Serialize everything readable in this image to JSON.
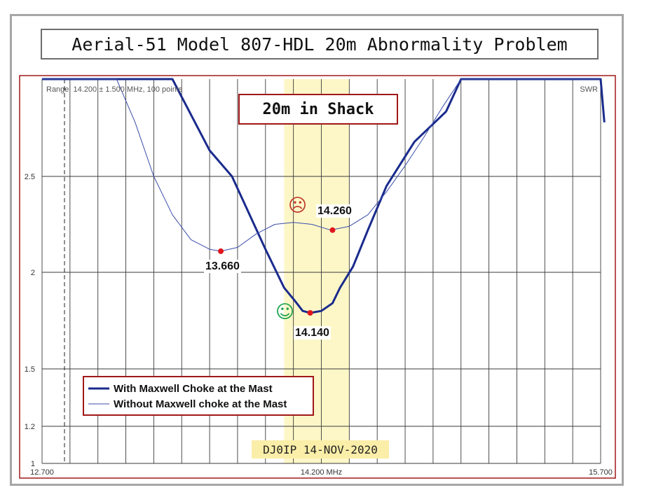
{
  "title": "Aerial-51 Model 807-HDL 20m Abnormality Problem",
  "annotation_box": "20m in Shack",
  "stamp": "DJ0IP 14-NOV-2020",
  "colors": {
    "with_choke": "#1a2b8c",
    "without_choke": "#3a4ca8",
    "marker": "#e0161c",
    "band_highlight": "#fdf7c8",
    "frame_border": "#a01818",
    "happy_face": "#1aa34a",
    "sad_face": "#c0392b"
  },
  "icons": {
    "happy": "☺",
    "sad": "☹"
  },
  "chart_data": {
    "type": "line",
    "range_label": "Range: 14.200 ± 1.500 MHz, 100 points",
    "swr_label": "SWR",
    "x_tick_labels": [
      "12.700",
      "14.200 MHz",
      "15.700"
    ],
    "y_tick_labels": [
      "2.5",
      "2",
      "1.5",
      "1.2",
      "1"
    ],
    "y_tick_values": [
      2.5,
      2.0,
      1.5,
      1.2,
      1.0
    ],
    "xlim": [
      12.7,
      15.7
    ],
    "ylim": [
      1.0,
      2.95
    ],
    "grid": true,
    "band_highlight_mhz": [
      14.0,
      14.35
    ],
    "legend": [
      {
        "label": "With Maxwell Choke at the Mast",
        "style": "thick"
      },
      {
        "label": "Without Maxwell choke at the Mast",
        "style": "thin"
      }
    ],
    "series": [
      {
        "name": "With Maxwell Choke at the Mast",
        "x": [
          12.7,
          13.2,
          13.4,
          13.6,
          13.72,
          13.9,
          14.0,
          14.06,
          14.1,
          14.14,
          14.2,
          14.26,
          14.3,
          14.37,
          14.45,
          14.55,
          14.7,
          14.87,
          14.95,
          15.2,
          15.4,
          15.7,
          15.72
        ],
        "y": [
          2.95,
          2.95,
          2.95,
          2.62,
          2.5,
          2.12,
          1.92,
          1.85,
          1.8,
          1.79,
          1.8,
          1.84,
          1.92,
          2.03,
          2.22,
          2.45,
          2.66,
          2.8,
          2.95,
          2.95,
          2.95,
          2.95,
          2.75
        ]
      },
      {
        "name": "Without Maxwell choke at the Mast",
        "x": [
          12.7,
          13.1,
          13.2,
          13.3,
          13.4,
          13.5,
          13.6,
          13.66,
          13.75,
          13.85,
          13.95,
          14.05,
          14.15,
          14.25,
          14.35,
          14.45,
          14.55,
          14.65,
          14.75,
          14.85,
          14.95,
          15.2,
          15.4,
          15.7
        ],
        "y": [
          2.95,
          2.95,
          2.75,
          2.5,
          2.3,
          2.17,
          2.12,
          2.11,
          2.13,
          2.2,
          2.25,
          2.26,
          2.25,
          2.22,
          2.24,
          2.3,
          2.42,
          2.55,
          2.68,
          2.82,
          2.95,
          2.95,
          2.95,
          2.95
        ]
      }
    ],
    "markers": [
      {
        "x": 13.66,
        "y": 2.11,
        "label": "13.660"
      },
      {
        "x": 14.14,
        "y": 1.79,
        "label": "14.140"
      },
      {
        "x": 14.26,
        "y": 2.22,
        "label": "14.260"
      }
    ]
  }
}
